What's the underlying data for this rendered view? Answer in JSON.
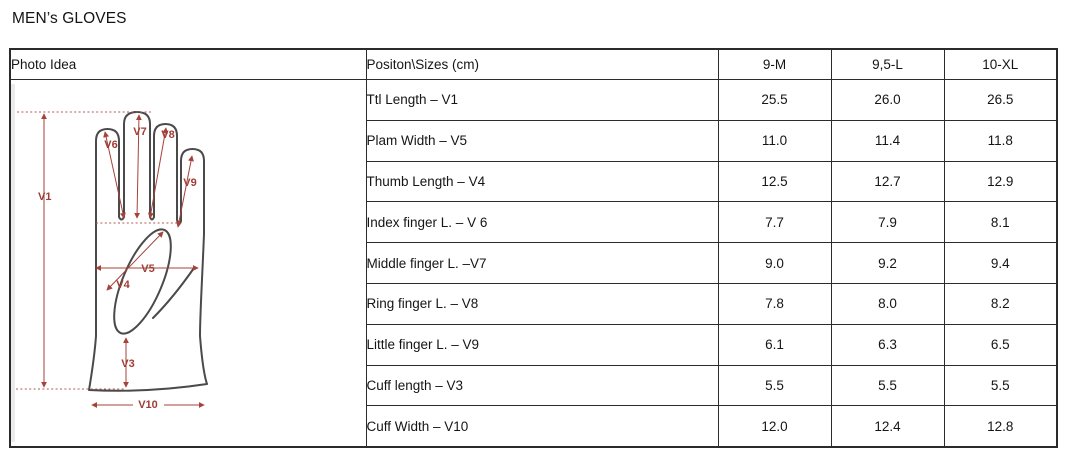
{
  "page": {
    "title": "MEN’s GLOVES"
  },
  "table": {
    "photo_header": "Photo Idea",
    "header": {
      "position_sizes": "Positon\\Sizes (cm)",
      "sizes": [
        "9-M",
        "9,5-L",
        "10-XL"
      ]
    },
    "rows": [
      {
        "label": "Ttl Length – V1",
        "values": [
          "25.5",
          "26.0",
          "26.5"
        ]
      },
      {
        "label": "Plam Width – V5",
        "values": [
          "11.0",
          "11.4",
          "11.8"
        ]
      },
      {
        "label": "Thumb Length – V4",
        "values": [
          "12.5",
          "12.7",
          "12.9"
        ]
      },
      {
        "label": "Index finger L. – V 6",
        "values": [
          "7.7",
          "7.9",
          "8.1"
        ]
      },
      {
        "label": "Middle finger L. –V7",
        "values": [
          "9.0",
          "9.2",
          "9.4"
        ]
      },
      {
        "label": "Ring finger L. – V8",
        "values": [
          "7.8",
          "8.0",
          "8.2"
        ]
      },
      {
        "label": "Little finger L. – V9",
        "values": [
          "6.1",
          "6.3",
          "6.5"
        ]
      },
      {
        "label": "Cuff length – V3",
        "values": [
          "5.5",
          "5.5",
          "5.5"
        ]
      },
      {
        "label": "Cuff Width – V10",
        "values": [
          "12.0",
          "12.4",
          "12.8"
        ]
      }
    ]
  },
  "diagram": {
    "labels": {
      "v1": "V1",
      "v3": "V3",
      "v4": "V4",
      "v5": "V5",
      "v6": "V6",
      "v7": "V7",
      "v8": "V8",
      "v9": "V9",
      "v10": "V10"
    }
  },
  "colors": {
    "accent_red": "#a5433a",
    "glove_outline": "#4a4a4a",
    "table_border": "#2b2b2b"
  }
}
